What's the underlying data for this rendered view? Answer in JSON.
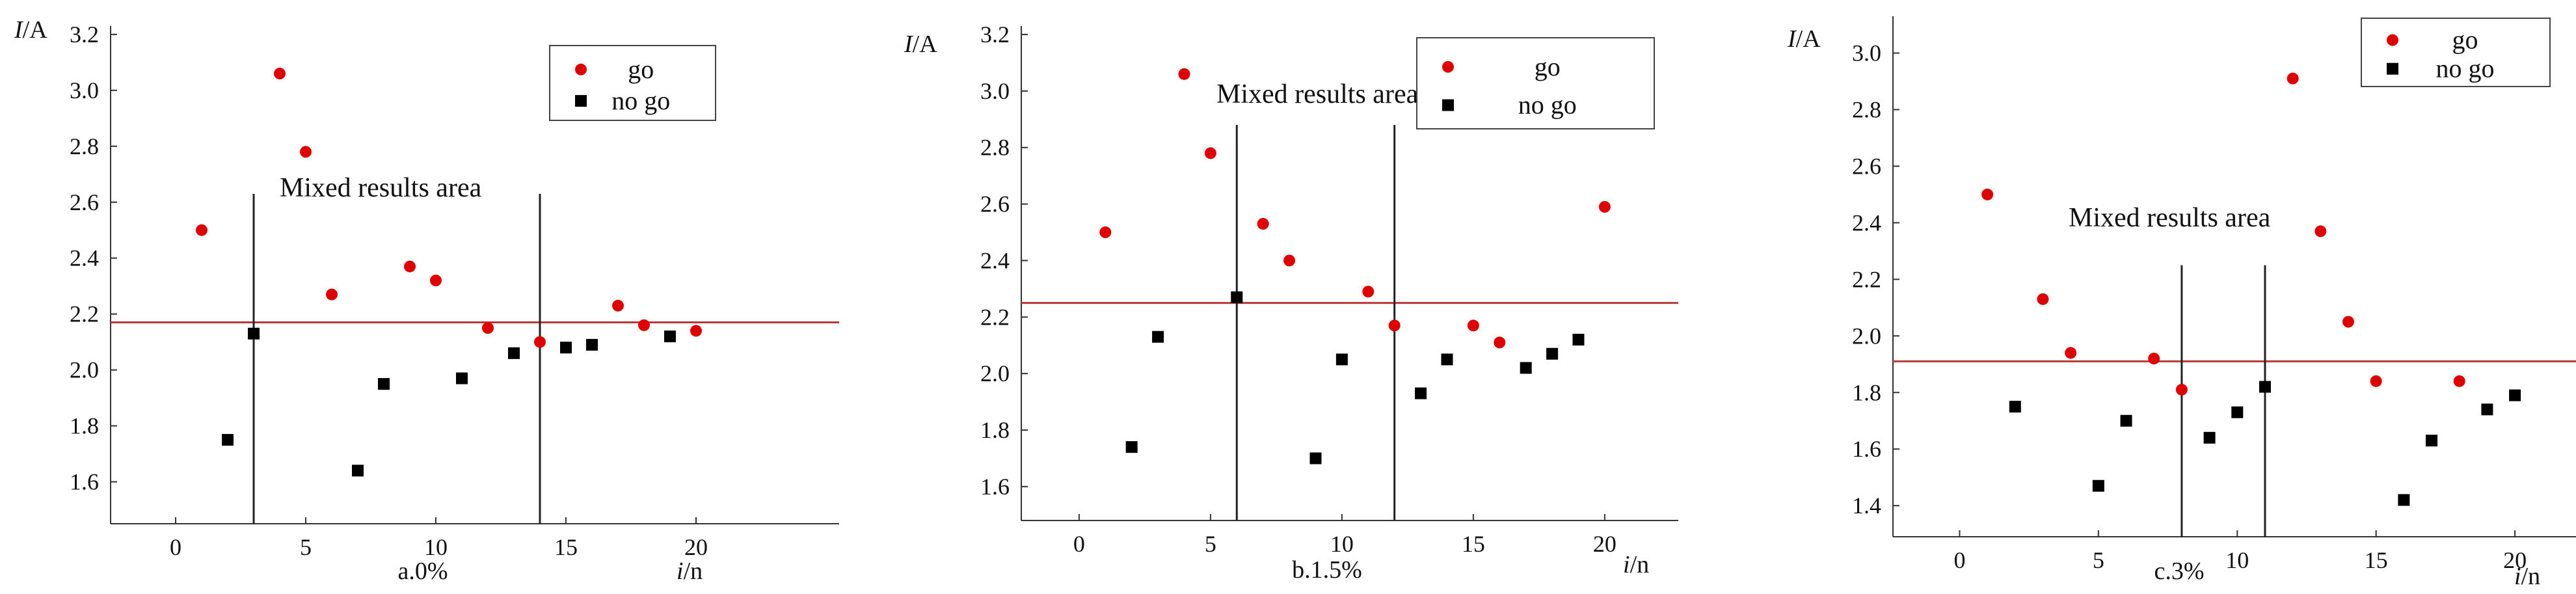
{
  "colors": {
    "go": "#e00000",
    "no_go": "#000000",
    "threshold": "#b53a3a",
    "axis": "#333333",
    "divider": "#222222"
  },
  "chart_data": [
    {
      "type": "scatter",
      "caption": "a.0%",
      "ylabel_italic": "I",
      "ylabel_rest": "/A",
      "xlabel_italic": "i",
      "xlabel_rest": "/n",
      "annotation": "Mixed results area",
      "legend": {
        "position": "top-right",
        "entries": [
          "go",
          "no go"
        ]
      },
      "xlim": [
        -2.5,
        25.5
      ],
      "ylim": [
        1.45,
        3.23
      ],
      "xticks": [
        0,
        5,
        10,
        15,
        20
      ],
      "yticks": [
        1.6,
        1.8,
        2.0,
        2.2,
        2.4,
        2.6,
        2.8,
        3.0,
        3.2
      ],
      "ytick_labels": [
        "1.6",
        "1.8",
        "2.0",
        "2.2",
        "2.4",
        "2.6",
        "2.8",
        "3.0",
        "3.2"
      ],
      "threshold": 2.17,
      "threshold_x": [
        -2.5,
        25.5
      ],
      "dividers": [
        {
          "x": 3,
          "y_top": 2.63
        },
        {
          "x": 14,
          "y_top": 2.63
        }
      ],
      "series": [
        {
          "name": "go",
          "marker": "circle",
          "x": [
            1,
            4,
            5,
            6,
            9,
            10,
            12,
            14,
            17,
            18,
            20
          ],
          "y": [
            2.5,
            3.06,
            2.78,
            2.27,
            2.37,
            2.32,
            2.15,
            2.1,
            2.23,
            2.16,
            2.14
          ]
        },
        {
          "name": "no go",
          "marker": "square",
          "x": [
            2,
            3,
            7,
            8,
            11,
            13,
            15,
            16,
            19
          ],
          "y": [
            1.75,
            2.13,
            1.64,
            1.95,
            1.97,
            2.06,
            2.08,
            2.09,
            2.12
          ]
        }
      ]
    },
    {
      "type": "scatter",
      "caption": "b.1.5%",
      "ylabel_italic": "I",
      "ylabel_rest": "/A",
      "xlabel_italic": "i",
      "xlabel_rest": "/n",
      "annotation": "Mixed results area",
      "legend": {
        "position": "top-right",
        "entries": [
          "go",
          "no go"
        ]
      },
      "xlim": [
        -2.2,
        22.8
      ],
      "ylim": [
        1.48,
        3.23
      ],
      "xticks": [
        0,
        5,
        10,
        15,
        20
      ],
      "yticks": [
        1.6,
        1.8,
        2.0,
        2.2,
        2.4,
        2.6,
        2.8,
        3.0,
        3.2
      ],
      "ytick_labels": [
        "1.6",
        "1.8",
        "2.0",
        "2.2",
        "2.4",
        "2.6",
        "2.8",
        "3.0",
        "3.2"
      ],
      "threshold": 2.25,
      "threshold_x": [
        -2.2,
        22.8
      ],
      "dividers": [
        {
          "x": 6,
          "y_top": 2.88
        },
        {
          "x": 12,
          "y_top": 2.88
        }
      ],
      "series": [
        {
          "name": "go",
          "marker": "circle",
          "x": [
            1,
            4,
            5,
            7,
            8,
            11,
            12,
            15,
            16,
            20
          ],
          "y": [
            2.5,
            3.06,
            2.78,
            2.53,
            2.4,
            2.29,
            2.17,
            2.17,
            2.11,
            2.59
          ]
        },
        {
          "name": "no go",
          "marker": "square",
          "x": [
            2,
            3,
            6,
            9,
            10,
            13,
            14,
            17,
            18,
            19
          ],
          "y": [
            1.74,
            2.13,
            2.27,
            1.7,
            2.05,
            1.93,
            2.05,
            2.02,
            2.07,
            2.12
          ]
        }
      ]
    },
    {
      "type": "scatter",
      "caption": "c.3%",
      "ylabel_italic": "I",
      "ylabel_rest": "/A",
      "xlabel_italic": "i",
      "xlabel_rest": "/n",
      "annotation": "Mixed results area",
      "legend": {
        "position": "top-left",
        "entries": [
          "go",
          "no go"
        ]
      },
      "xlim": [
        -2.4,
        22.2
      ],
      "ylim": [
        1.29,
        3.13
      ],
      "xticks": [
        0,
        5,
        10,
        15,
        20
      ],
      "yticks": [
        1.4,
        1.6,
        1.8,
        2.0,
        2.2,
        2.4,
        2.6,
        2.8,
        3.0
      ],
      "ytick_labels": [
        "1.4",
        "1.6",
        "1.8",
        "2.0",
        "2.2",
        "2.4",
        "2.6",
        "2.8",
        "3.0"
      ],
      "threshold": 1.91,
      "threshold_x": [
        -2.4,
        22.2
      ],
      "dividers": [
        {
          "x": 8,
          "y_top": 2.25
        },
        {
          "x": 11,
          "y_top": 2.25
        }
      ],
      "series": [
        {
          "name": "go",
          "marker": "circle",
          "x": [
            1,
            3,
            4,
            7,
            8,
            12,
            13,
            14,
            15,
            18
          ],
          "y": [
            2.5,
            2.13,
            1.94,
            1.92,
            1.81,
            2.91,
            2.37,
            2.05,
            1.84,
            1.84
          ]
        },
        {
          "name": "no go",
          "marker": "square",
          "x": [
            2,
            5,
            6,
            9,
            10,
            11,
            16,
            17,
            19,
            20
          ],
          "y": [
            1.75,
            1.47,
            1.7,
            1.64,
            1.73,
            1.82,
            1.42,
            1.63,
            1.74,
            1.79
          ]
        }
      ]
    }
  ]
}
